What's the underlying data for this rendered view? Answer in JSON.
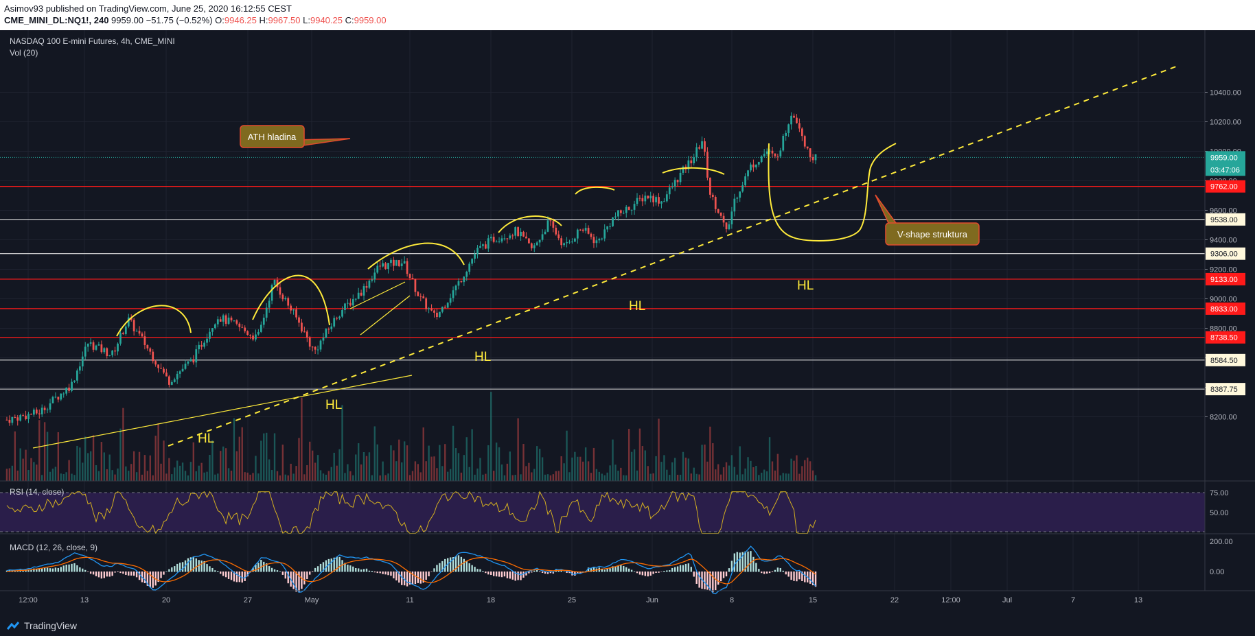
{
  "header": {
    "publisher_line": "Asimov93 published on TradingView.com, June 25, 2020 16:12:55 CEST",
    "symbol": "CME_MINI_DL:NQ1!, 240",
    "last": "9959.00",
    "change": "−51.75 (−0.52%)",
    "o_label": "O:",
    "o_value": "9946.25",
    "h_label": "H:",
    "h_value": "9967.50",
    "l_label": "L:",
    "l_value": "9940.25",
    "c_label": "C:",
    "c_value": "9959.00"
  },
  "legend": {
    "title": "NASDAQ 100 E-mini Futures, 4h, CME_MINI",
    "volume": "Vol (20)",
    "rsi": "RSI (14, close)",
    "macd": "MACD (12, 26, close, 9)"
  },
  "annotations": {
    "ath_box": "ATH hladina",
    "vshape_box": "V-shape struktura",
    "hl": "HL"
  },
  "footer": {
    "brand": "TradingView"
  },
  "colors": {
    "background": "#131722",
    "up": "#26a69a",
    "down": "#ef5350",
    "annotation": "#ffeb3b",
    "red_level": "#ff1a1a",
    "white_level": "#ffffff",
    "rsi_band": "#2a1e4a",
    "macd_line": "#2196f3",
    "signal_line": "#ff6d00",
    "box_fill": "#7f6a1f",
    "box_border": "#e34b2e"
  },
  "chart_data": {
    "type": "candlestick",
    "price_axis": {
      "ticks": [
        8200,
        8400,
        8600,
        8800,
        9000,
        9200,
        9400,
        9600,
        9800,
        10000,
        10200,
        10400
      ],
      "tick_labels": [
        "8200.00",
        "8400.00",
        "8600.00",
        "8800.00",
        "9000.00",
        "9200.00",
        "9400.00",
        "9600.00",
        "9800.00",
        "10000.00",
        "10200.00",
        "10400.00"
      ]
    },
    "x_axis": {
      "labels": [
        "12:00",
        "13",
        "20",
        "27",
        "May",
        "11",
        "18",
        "25",
        "Jun",
        "8",
        "15",
        "22",
        "12:00",
        "Jul",
        "7",
        "13"
      ]
    },
    "last_price": {
      "label": "9959.00",
      "countdown": "03:47:06",
      "value": 9959.0
    },
    "levels": [
      {
        "value": 9762.0,
        "label": "9762.00",
        "kind": "red"
      },
      {
        "value": 9538.0,
        "label": "9538.00",
        "kind": "white"
      },
      {
        "value": 9306.0,
        "label": "9306.00",
        "kind": "white"
      },
      {
        "value": 9133.0,
        "label": "9133.00",
        "kind": "red"
      },
      {
        "value": 8933.0,
        "label": "8933.00",
        "kind": "red"
      },
      {
        "value": 8738.5,
        "label": "8738.50",
        "kind": "red"
      },
      {
        "value": 8584.5,
        "label": "8584.50",
        "kind": "white"
      },
      {
        "value": 8387.75,
        "label": "8387.75",
        "kind": "white"
      }
    ],
    "close_path": [
      [
        0,
        8180
      ],
      [
        0.04,
        8230
      ],
      [
        0.08,
        8420
      ],
      [
        0.1,
        8700
      ],
      [
        0.13,
        8620
      ],
      [
        0.15,
        8860
      ],
      [
        0.17,
        8700
      ],
      [
        0.2,
        8440
      ],
      [
        0.23,
        8590
      ],
      [
        0.26,
        8880
      ],
      [
        0.28,
        8830
      ],
      [
        0.31,
        8730
      ],
      [
        0.33,
        9120
      ],
      [
        0.36,
        8850
      ],
      [
        0.38,
        8640
      ],
      [
        0.41,
        8900
      ],
      [
        0.44,
        9060
      ],
      [
        0.46,
        9220
      ],
      [
        0.49,
        9250
      ],
      [
        0.51,
        9010
      ],
      [
        0.53,
        8870
      ],
      [
        0.56,
        9120
      ],
      [
        0.58,
        9320
      ],
      [
        0.6,
        9400
      ],
      [
        0.63,
        9460
      ],
      [
        0.65,
        9330
      ],
      [
        0.67,
        9520
      ],
      [
        0.69,
        9350
      ],
      [
        0.71,
        9480
      ],
      [
        0.73,
        9380
      ],
      [
        0.75,
        9550
      ],
      [
        0.77,
        9620
      ],
      [
        0.79,
        9700
      ],
      [
        0.81,
        9660
      ],
      [
        0.83,
        9820
      ],
      [
        0.85,
        9970
      ],
      [
        0.86,
        10080
      ],
      [
        0.87,
        9700
      ],
      [
        0.88,
        9600
      ],
      [
        0.89,
        9440
      ],
      [
        0.9,
        9680
      ],
      [
        0.92,
        9900
      ],
      [
        0.94,
        10000
      ],
      [
        0.95,
        9950
      ],
      [
        0.96,
        10080
      ],
      [
        0.97,
        10270
      ],
      [
        0.98,
        10180
      ],
      [
        0.99,
        9990
      ],
      [
        1,
        9959
      ]
    ],
    "rsi": {
      "levels": [
        75,
        50,
        30
      ],
      "tick_labels": [
        "75.00",
        "50.00"
      ]
    },
    "macd": {
      "tick_labels": [
        "200.00",
        "0.00"
      ]
    }
  }
}
